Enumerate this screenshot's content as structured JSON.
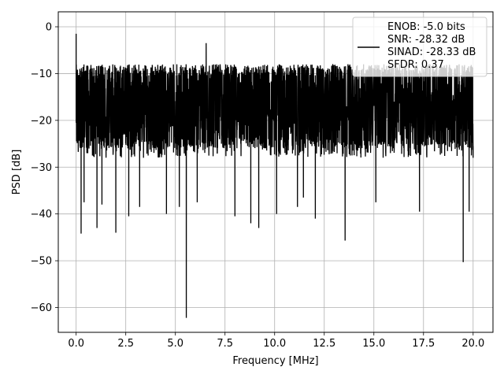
{
  "chart_data": {
    "type": "line",
    "xlabel": "Frequency [MHz]",
    "ylabel": "PSD [dB]",
    "xlim": [
      -0.9,
      21.0
    ],
    "ylim": [
      -65.3,
      3.2
    ],
    "xticks": [
      0.0,
      2.5,
      5.0,
      7.5,
      10.0,
      12.5,
      15.0,
      17.5,
      20.0
    ],
    "xtick_labels": [
      "0.0",
      "2.5",
      "5.0",
      "7.5",
      "10.0",
      "12.5",
      "15.0",
      "17.5",
      "20.0"
    ],
    "yticks": [
      0,
      -10,
      -20,
      -30,
      -40,
      -50,
      -60
    ],
    "ytick_labels": [
      "0",
      "−10",
      "−20",
      "−30",
      "−40",
      "−50",
      "−60"
    ],
    "grid": true,
    "legend_position": "upper right",
    "series": [
      {
        "color": "#000000",
        "description": "dense noise floor of power spectral density samples",
        "x_range": [
          0.0,
          20.0
        ],
        "typical_band_db": [
          -28,
          -5
        ],
        "peak_points": [
          {
            "x": 0.0,
            "y": -1.5
          },
          {
            "x": 0.05,
            "y": -18
          },
          {
            "x": 0.25,
            "y": -44.2
          },
          {
            "x": 0.4,
            "y": -37.5
          },
          {
            "x": 1.05,
            "y": -43
          },
          {
            "x": 1.3,
            "y": -38
          },
          {
            "x": 2.0,
            "y": -44
          },
          {
            "x": 2.65,
            "y": -40.5
          },
          {
            "x": 3.2,
            "y": -38.5
          },
          {
            "x": 4.55,
            "y": -40
          },
          {
            "x": 5.2,
            "y": -38.5
          },
          {
            "x": 5.55,
            "y": -62.2
          },
          {
            "x": 6.1,
            "y": -37.5
          },
          {
            "x": 6.55,
            "y": -3.5
          },
          {
            "x": 8.0,
            "y": -40.5
          },
          {
            "x": 8.8,
            "y": -42
          },
          {
            "x": 9.2,
            "y": -43
          },
          {
            "x": 10.1,
            "y": -40
          },
          {
            "x": 11.15,
            "y": -38.5
          },
          {
            "x": 11.45,
            "y": -36.5
          },
          {
            "x": 12.05,
            "y": -41
          },
          {
            "x": 13.55,
            "y": -45.7
          },
          {
            "x": 15.1,
            "y": -37.5
          },
          {
            "x": 17.3,
            "y": -39.5
          },
          {
            "x": 19.5,
            "y": -50.3
          },
          {
            "x": 19.8,
            "y": -39.5
          },
          {
            "x": 20.0,
            "y": -28
          }
        ]
      }
    ],
    "legend": {
      "lines": [
        "ENOB: -5.0 bits",
        "SNR: -28.32 dB",
        "SINAD: -28.33 dB",
        "SFDR: 0.37"
      ]
    }
  }
}
